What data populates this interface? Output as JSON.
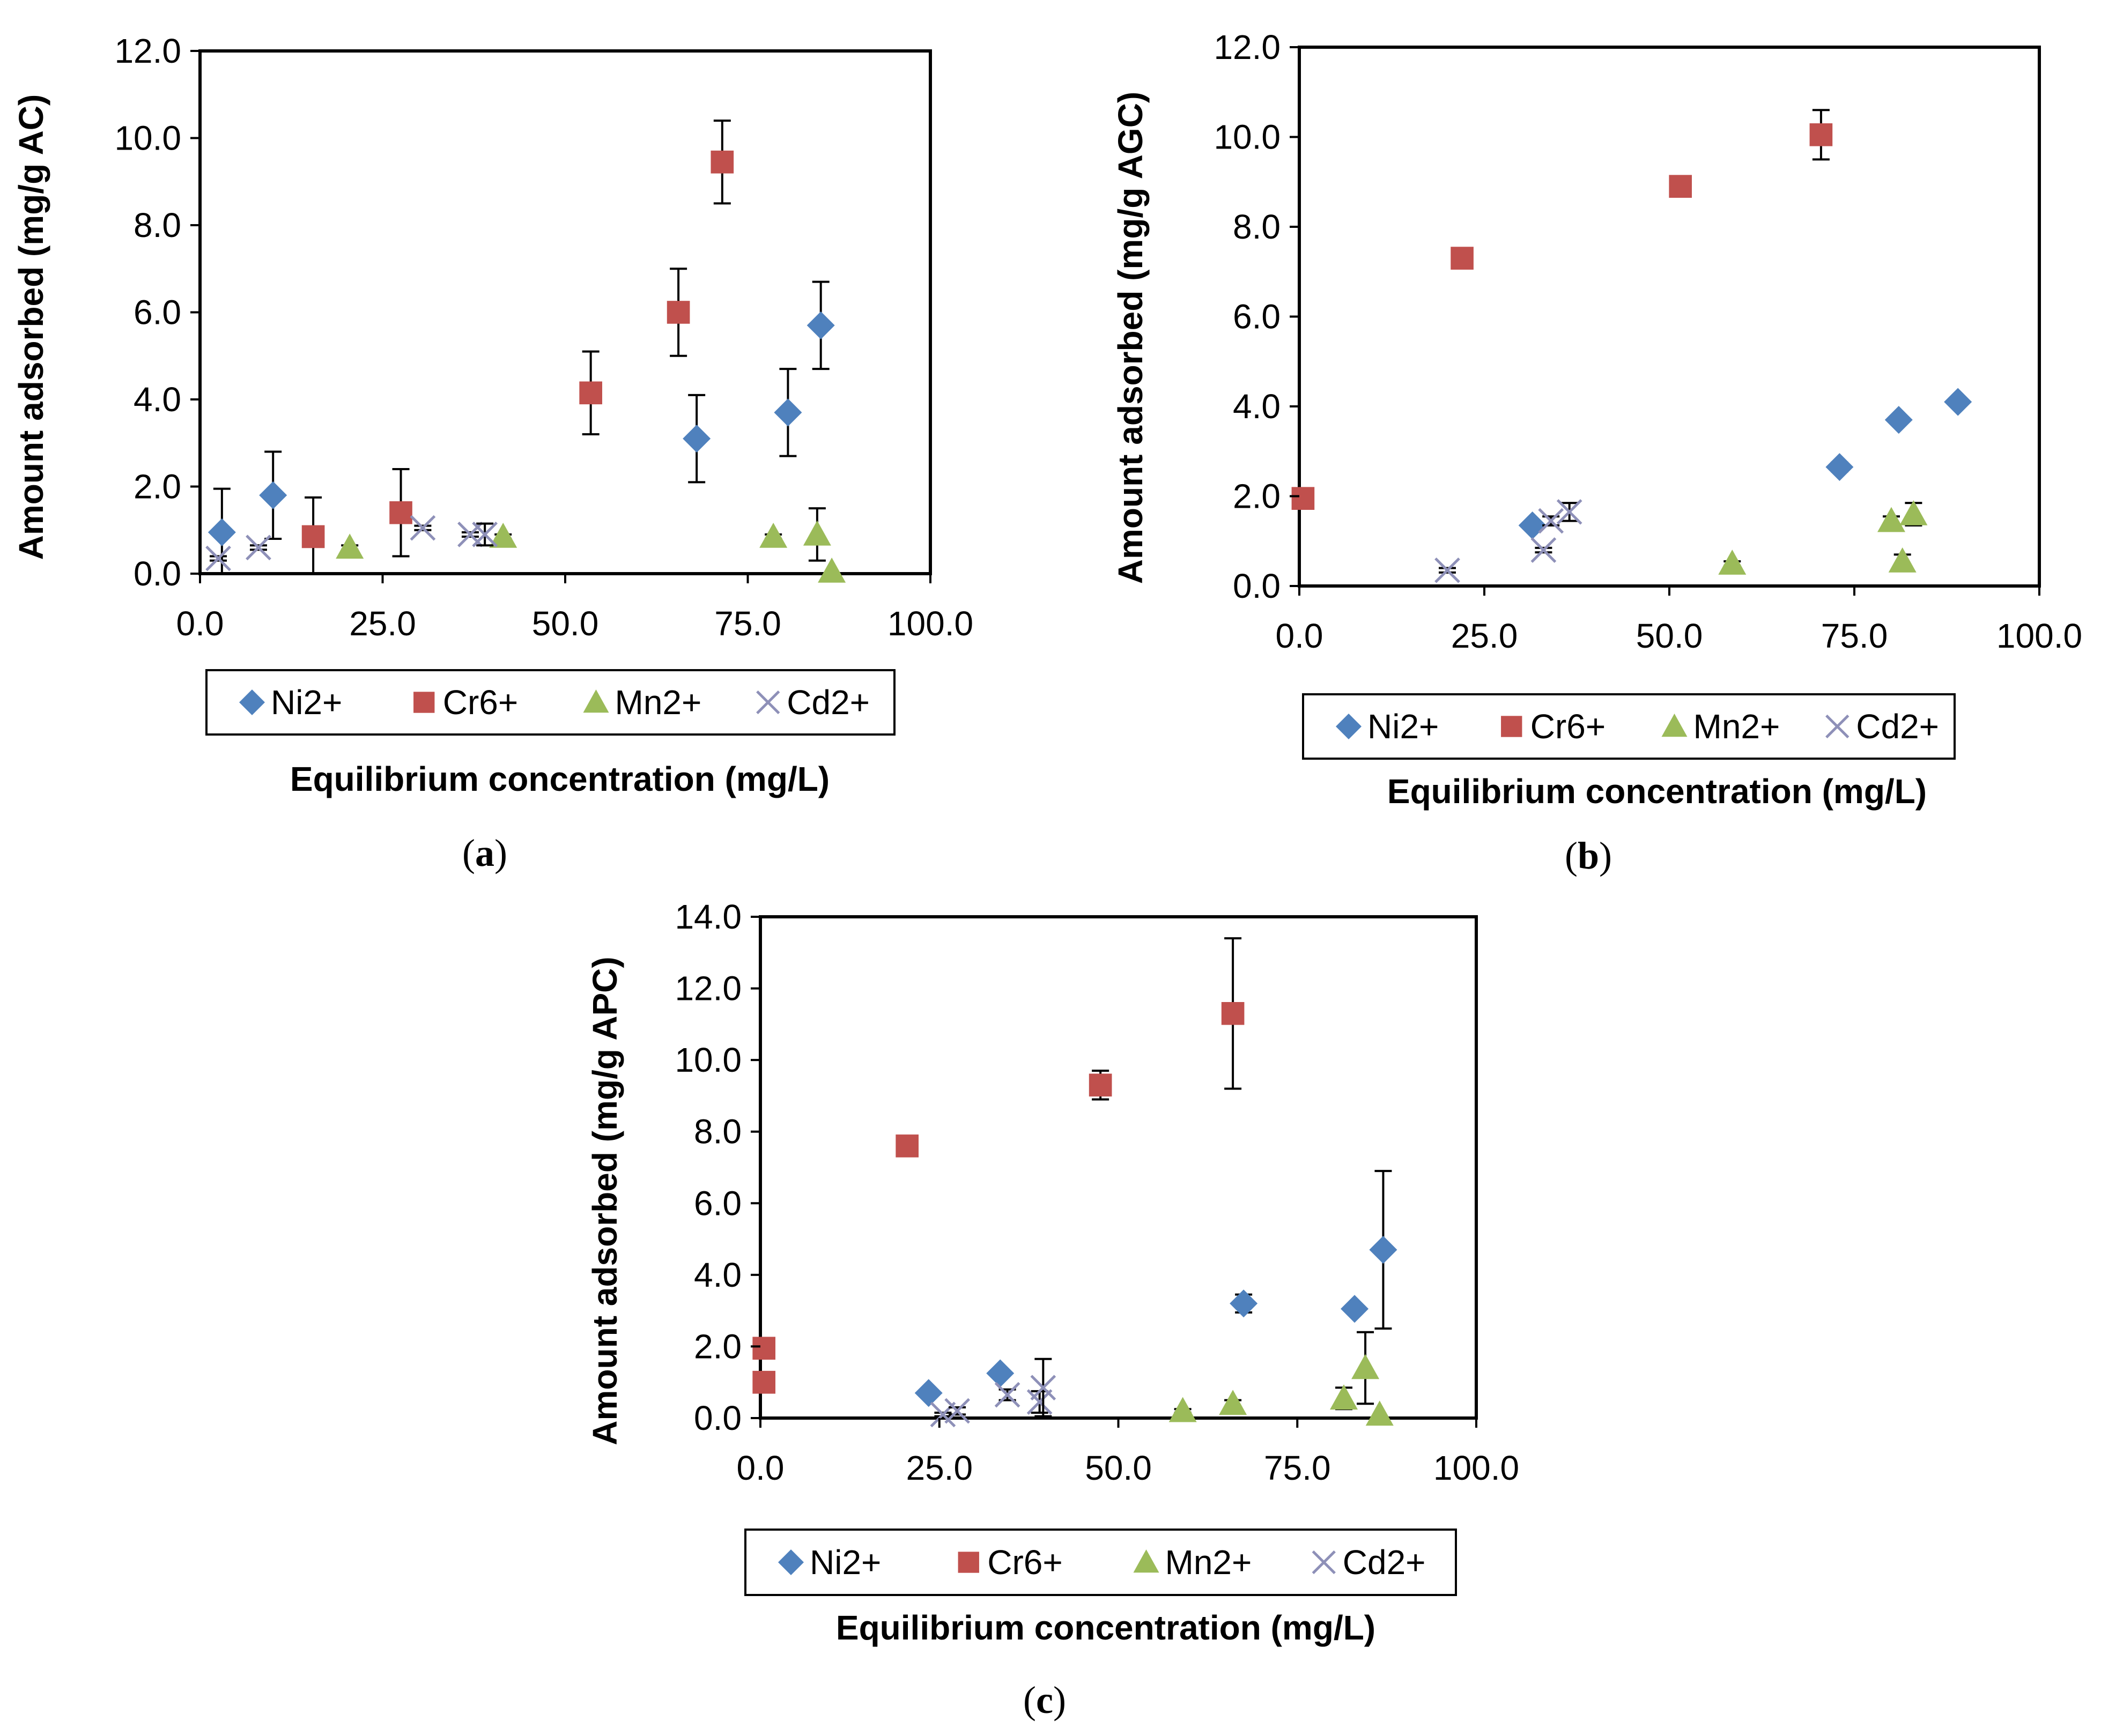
{
  "colors": {
    "Ni2+": "#4f81bd",
    "Cr6+": "#c0504d",
    "Mn2+": "#9bbb59",
    "Cd2+": "#8e90b8",
    "errorbar": "#000000"
  },
  "chart_data": [
    {
      "type": "scatter",
      "panel_label": "(a)",
      "panel_letter": "a",
      "xlabel": "Equilibrium concentration (mg/L)",
      "ylabel": "Amount adsorbed (mg/g AC)",
      "xlim": [
        0,
        100
      ],
      "ylim": [
        0,
        12
      ],
      "xticks": [
        "0.0",
        "25.0",
        "50.0",
        "75.0",
        "100.0"
      ],
      "yticks": [
        "0.0",
        "2.0",
        "4.0",
        "6.0",
        "8.0",
        "10.0",
        "12.0"
      ],
      "grid": false,
      "legend": {
        "placement": "bottom",
        "entries": [
          "Ni2+",
          "Cr6+",
          "Mn2+",
          "Cd2+"
        ]
      },
      "series": [
        {
          "name": "Ni2+",
          "marker": "diamond",
          "points": [
            {
              "x": 3,
              "y": 0.95,
              "err": 1.0
            },
            {
              "x": 10,
              "y": 1.8,
              "err": 1.0
            },
            {
              "x": 68,
              "y": 3.1,
              "err": 1.0
            },
            {
              "x": 80.5,
              "y": 3.7,
              "err": 1.0
            },
            {
              "x": 85,
              "y": 5.7,
              "err": 1.0
            }
          ]
        },
        {
          "name": "Cr6+",
          "marker": "square",
          "points": [
            {
              "x": 15.5,
              "y": 0.85,
              "err": 0.9
            },
            {
              "x": 27.5,
              "y": 1.4,
              "err": 1.0
            },
            {
              "x": 53.5,
              "y": 4.15,
              "err": 0.95
            },
            {
              "x": 65.5,
              "y": 6.0,
              "err": 1.0
            },
            {
              "x": 71.5,
              "y": 9.45,
              "err": 0.95
            }
          ]
        },
        {
          "name": "Mn2+",
          "marker": "triangle",
          "points": [
            {
              "x": 20.5,
              "y": 0.6,
              "err": 0.05
            },
            {
              "x": 41.5,
              "y": 0.85,
              "err": 0.05
            },
            {
              "x": 78.5,
              "y": 0.85,
              "err": 0.05
            },
            {
              "x": 84.5,
              "y": 0.9,
              "err": 0.6
            },
            {
              "x": 86.5,
              "y": 0.05,
              "err": 0.0
            }
          ]
        },
        {
          "name": "Cd2+",
          "marker": "x",
          "points": [
            {
              "x": 2.5,
              "y": 0.35,
              "err": 0.05
            },
            {
              "x": 8,
              "y": 0.6,
              "err": 0.05
            },
            {
              "x": 30.5,
              "y": 1.05,
              "err": 0.05
            },
            {
              "x": 37,
              "y": 0.9,
              "err": 0.05
            },
            {
              "x": 39,
              "y": 0.9,
              "err": 0.25
            }
          ]
        }
      ]
    },
    {
      "type": "scatter",
      "panel_label": "(b)",
      "panel_letter": "b",
      "xlabel": "Equilibrium concentration (mg/L)",
      "ylabel": "Amount adsorbed (mg/g AGC)",
      "xlim": [
        0,
        100
      ],
      "ylim": [
        0,
        12
      ],
      "xticks": [
        "0.0",
        "25.0",
        "50.0",
        "75.0",
        "100.0"
      ],
      "yticks": [
        "0.0",
        "2.0",
        "4.0",
        "6.0",
        "8.0",
        "10.0",
        "12.0"
      ],
      "grid": false,
      "legend": {
        "placement": "bottom",
        "entries": [
          "Ni2+",
          "Cr6+",
          "Mn2+",
          "Cd2+"
        ]
      },
      "series": [
        {
          "name": "Ni2+",
          "marker": "diamond",
          "points": [
            {
              "x": 31.5,
              "y": 1.35,
              "err": 0.05
            },
            {
              "x": 73,
              "y": 2.65,
              "err": 0.1
            },
            {
              "x": 81,
              "y": 3.7,
              "err": 0.05
            },
            {
              "x": 89,
              "y": 4.1,
              "err": 0.05
            }
          ]
        },
        {
          "name": "Cr6+",
          "marker": "square",
          "points": [
            {
              "x": 0.5,
              "y": 1.95,
              "err": 0.05
            },
            {
              "x": 22,
              "y": 7.3,
              "err": 0.1
            },
            {
              "x": 51.5,
              "y": 8.9,
              "err": 0.15
            },
            {
              "x": 70.5,
              "y": 10.05,
              "err": 0.55
            }
          ]
        },
        {
          "name": "Mn2+",
          "marker": "triangle",
          "points": [
            {
              "x": 58.5,
              "y": 0.5,
              "err": 0.05
            },
            {
              "x": 80,
              "y": 1.45,
              "err": 0.1
            },
            {
              "x": 81.5,
              "y": 0.55,
              "err": 0.15
            },
            {
              "x": 83,
              "y": 1.6,
              "err": 0.25
            }
          ]
        },
        {
          "name": "Cd2+",
          "marker": "x",
          "points": [
            {
              "x": 20,
              "y": 0.35,
              "err": 0.05
            },
            {
              "x": 33,
              "y": 0.8,
              "err": 0.05
            },
            {
              "x": 34,
              "y": 1.45,
              "err": 0.1
            },
            {
              "x": 36.5,
              "y": 1.65,
              "err": 0.2
            }
          ]
        }
      ]
    },
    {
      "type": "scatter",
      "panel_label": "(c)",
      "panel_letter": "c",
      "xlabel": "Equilibrium concentration (mg/L)",
      "ylabel": "Amount adsorbed (mg/g APC)",
      "xlim": [
        0,
        100
      ],
      "ylim": [
        0,
        14
      ],
      "xticks": [
        "0.0",
        "25.0",
        "50.0",
        "75.0",
        "100.0"
      ],
      "yticks": [
        "0.0",
        "2.0",
        "4.0",
        "6.0",
        "8.0",
        "10.0",
        "12.0",
        "14.0"
      ],
      "grid": false,
      "legend": {
        "placement": "bottom",
        "entries": [
          "Ni2+",
          "Cr6+",
          "Mn2+",
          "Cd2+"
        ]
      },
      "series": [
        {
          "name": "Ni2+",
          "marker": "diamond",
          "points": [
            {
              "x": 23.5,
              "y": 0.7,
              "err": 0.05
            },
            {
              "x": 33.5,
              "y": 1.25,
              "err": 0.05
            },
            {
              "x": 67.5,
              "y": 3.2,
              "err": 0.25
            },
            {
              "x": 83,
              "y": 3.05,
              "err": 0.1
            },
            {
              "x": 87,
              "y": 4.7,
              "err": 2.2
            }
          ]
        },
        {
          "name": "Cr6+",
          "marker": "square",
          "points": [
            {
              "x": 0.5,
              "y": 1.95,
              "err": 0.05
            },
            {
              "x": 0.5,
              "y": 1.0,
              "err": 0.05
            },
            {
              "x": 20.5,
              "y": 7.6,
              "err": 0.05
            },
            {
              "x": 47.5,
              "y": 9.3,
              "err": 0.4
            },
            {
              "x": 66,
              "y": 11.3,
              "err": 2.1
            }
          ]
        },
        {
          "name": "Mn2+",
          "marker": "triangle",
          "points": [
            {
              "x": 59,
              "y": 0.2,
              "err": 0.05
            },
            {
              "x": 66,
              "y": 0.4,
              "err": 0.1
            },
            {
              "x": 81.5,
              "y": 0.55,
              "err": 0.3
            },
            {
              "x": 84.5,
              "y": 1.4,
              "err": 1.0
            },
            {
              "x": 86.5,
              "y": 0.1,
              "err": 0.0
            }
          ]
        },
        {
          "name": "Cd2+",
          "marker": "x",
          "points": [
            {
              "x": 25.5,
              "y": 0.1,
              "err": 0.05
            },
            {
              "x": 27.5,
              "y": 0.2,
              "err": 0.1
            },
            {
              "x": 34.5,
              "y": 0.65,
              "err": 0.15
            },
            {
              "x": 39,
              "y": 0.45,
              "err": 0.3
            },
            {
              "x": 39.5,
              "y": 0.85,
              "err": 0.8
            }
          ]
        }
      ]
    }
  ]
}
